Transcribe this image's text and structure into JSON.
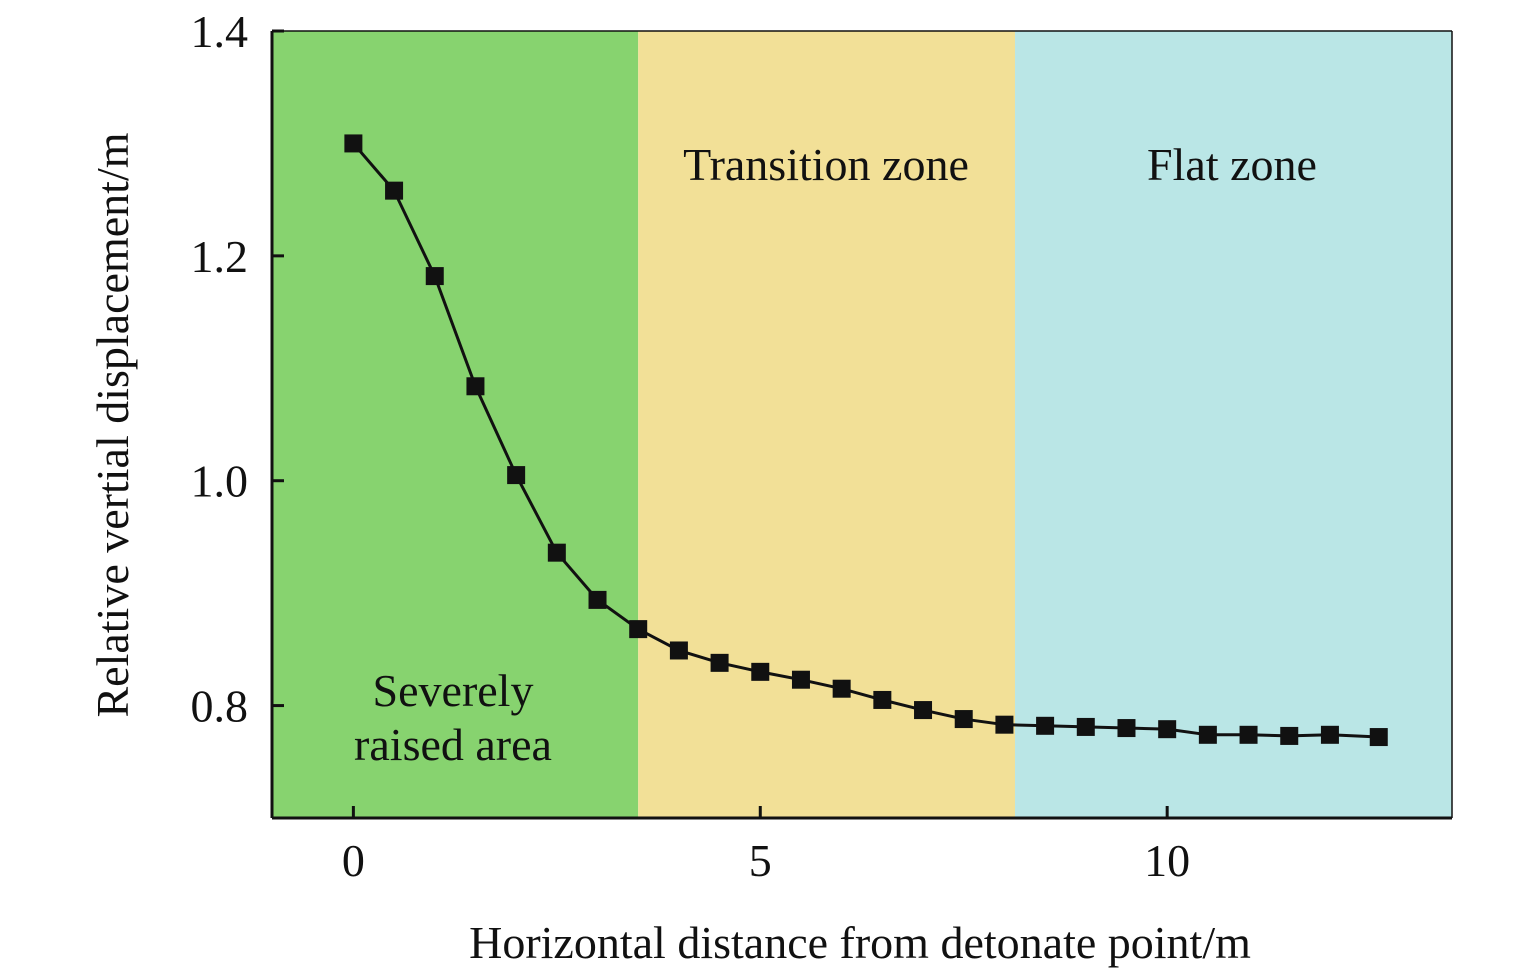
{
  "chart_data": {
    "type": "line",
    "xlabel": "Horizontal distance from detonate point/m",
    "ylabel": "Relative vertial displacement/m",
    "xlim": [
      -1,
      13.5
    ],
    "ylim": [
      0.7,
      1.4
    ],
    "x_ticks": [
      0,
      5,
      10
    ],
    "x_tick_labels": [
      "0",
      "5",
      "10"
    ],
    "y_ticks": [
      0.8,
      1.0,
      1.2,
      1.4
    ],
    "y_tick_labels": [
      "0.8",
      "1.0",
      "1.2",
      "1.4"
    ],
    "grid": false,
    "marker": "square",
    "line_color": "#111111",
    "zones": [
      {
        "label_lines": [
          "Severely",
          "raised area"
        ],
        "x_start": -1,
        "x_end": 3.5,
        "color": "#87d36f"
      },
      {
        "label_lines": [
          "Transition zone"
        ],
        "x_start": 3.5,
        "x_end": 8.13,
        "color": "#f2e097"
      },
      {
        "label_lines": [
          "Flat zone"
        ],
        "x_start": 8.13,
        "x_end": 13.5,
        "color": "#bae6e6"
      }
    ],
    "series": [
      {
        "x": [
          0,
          0.5,
          1,
          1.5,
          2,
          2.5,
          3,
          3.5,
          4,
          4.5,
          5,
          5.5,
          6,
          6.5,
          7,
          7.5,
          8,
          8.5,
          9,
          9.5,
          10,
          10.5,
          11,
          11.5,
          12,
          12.6
        ],
        "y": [
          1.3,
          1.258,
          1.182,
          1.084,
          1.005,
          0.936,
          0.894,
          0.868,
          0.849,
          0.838,
          0.83,
          0.823,
          0.815,
          0.805,
          0.796,
          0.788,
          0.783,
          0.782,
          0.781,
          0.78,
          0.779,
          0.774,
          0.774,
          0.773,
          0.774,
          0.772
        ]
      }
    ]
  }
}
